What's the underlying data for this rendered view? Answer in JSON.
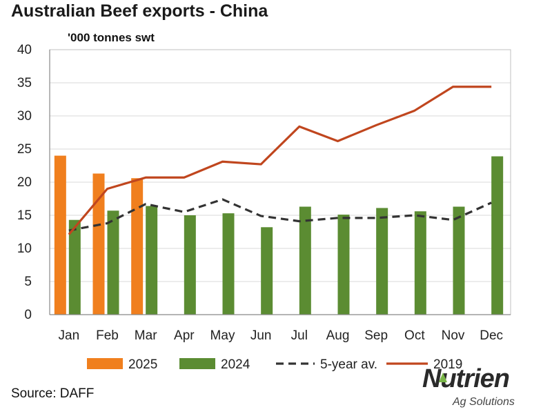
{
  "header": {
    "title": "Australian Beef exports - China"
  },
  "footer": {
    "source": "Source: DAFF"
  },
  "logo": {
    "name": "Nutrien",
    "tagline": "Ag Solutions",
    "icon": "leaf-icon",
    "accent": "#7ab648"
  },
  "chart_data": {
    "type": "bar",
    "title": "Australian Beef exports - China",
    "ylabel": "'000 tonnes swt",
    "xlabel": "",
    "ylim": [
      0,
      40
    ],
    "yticks": [
      0,
      5,
      10,
      15,
      20,
      25,
      30,
      35,
      40
    ],
    "categories": [
      "Jan",
      "Feb",
      "Mar",
      "Apr",
      "May",
      "Jun",
      "Jul",
      "Aug",
      "Sep",
      "Oct",
      "Nov",
      "Dec"
    ],
    "grid": true,
    "legend": "bottom",
    "series": [
      {
        "name": "2025",
        "kind": "bar",
        "color": "#f07f1e",
        "values": [
          24.0,
          21.3,
          20.6,
          null,
          null,
          null,
          null,
          null,
          null,
          null,
          null,
          null
        ]
      },
      {
        "name": "2024",
        "kind": "bar",
        "color": "#5b8c32",
        "values": [
          14.3,
          15.7,
          16.4,
          15.0,
          15.3,
          13.2,
          16.3,
          15.1,
          16.1,
          15.6,
          16.3,
          23.9
        ]
      },
      {
        "name": "5-year av.",
        "kind": "line",
        "style": "dashed",
        "color": "#333333",
        "values": [
          12.7,
          13.8,
          16.7,
          15.5,
          17.4,
          14.9,
          14.1,
          14.6,
          14.6,
          15.0,
          14.3,
          16.9
        ]
      },
      {
        "name": "2019",
        "kind": "line",
        "style": "solid",
        "color": "#c0461e",
        "values": [
          12.1,
          19.0,
          20.7,
          20.7,
          23.1,
          22.7,
          28.4,
          26.2,
          28.6,
          30.8,
          34.4,
          34.4
        ]
      }
    ]
  }
}
